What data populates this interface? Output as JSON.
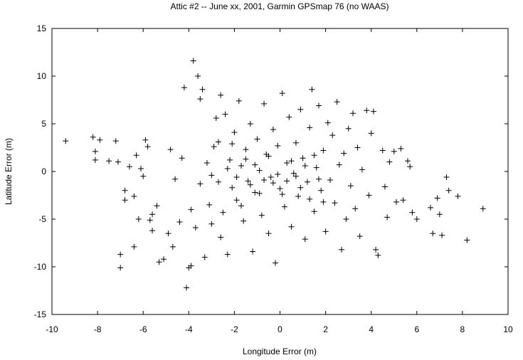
{
  "chart_data": {
    "type": "scatter",
    "title": "Attic #2 -- June xx, 2001, Garmin GPSmap 76 (no WAAS)",
    "xlabel": "Longitude Error  (m)",
    "ylabel": "Latitude Error  (m)",
    "xlim": [
      -10,
      10
    ],
    "ylim": [
      -15,
      15
    ],
    "xticks": [
      -10,
      -8,
      -6,
      -4,
      -2,
      0,
      2,
      4,
      6,
      8,
      10
    ],
    "yticks": [
      -15,
      -10,
      -5,
      0,
      5,
      10,
      15
    ],
    "grid": false,
    "marker": "+",
    "marker_color": "#000000",
    "series": [
      {
        "points": [
          [
            -9.4,
            3.2
          ],
          [
            -8.2,
            3.6
          ],
          [
            -8.1,
            2.1
          ],
          [
            -8.1,
            1.2
          ],
          [
            -7.9,
            3.3
          ],
          [
            -7.5,
            1.1
          ],
          [
            -7.2,
            3.2
          ],
          [
            -7.1,
            1.0
          ],
          [
            -7.0,
            -8.7
          ],
          [
            -7.0,
            -10.1
          ],
          [
            -6.8,
            -2.0
          ],
          [
            -6.8,
            -3.0
          ],
          [
            -6.6,
            0.5
          ],
          [
            -6.4,
            -7.9
          ],
          [
            -6.4,
            -2.6
          ],
          [
            -6.3,
            1.7
          ],
          [
            -6.2,
            -5.0
          ],
          [
            -6.1,
            0.3
          ],
          [
            -6.0,
            -0.5
          ],
          [
            -5.9,
            3.3
          ],
          [
            -5.8,
            2.6
          ],
          [
            -5.7,
            -5.1
          ],
          [
            -5.6,
            -4.5
          ],
          [
            -5.6,
            -6.2
          ],
          [
            -5.4,
            -3.6
          ],
          [
            -5.3,
            -9.5
          ],
          [
            -5.1,
            -9.2
          ],
          [
            -4.9,
            -6.5
          ],
          [
            -4.8,
            2.3
          ],
          [
            -4.7,
            -7.9
          ],
          [
            -4.6,
            -0.8
          ],
          [
            -4.4,
            -5.3
          ],
          [
            -4.3,
            1.4
          ],
          [
            -4.2,
            8.8
          ],
          [
            -4.1,
            -12.2
          ],
          [
            -4.0,
            -10.1
          ],
          [
            -3.9,
            -9.9
          ],
          [
            -3.8,
            11.6
          ],
          [
            -3.6,
            10.0
          ],
          [
            -3.5,
            7.6
          ],
          [
            -3.4,
            8.6
          ],
          [
            -3.3,
            -9.0
          ],
          [
            -3.1,
            -3.5
          ],
          [
            -3.0,
            -0.4
          ],
          [
            -2.8,
            5.6
          ],
          [
            -2.7,
            3.1
          ],
          [
            -2.6,
            8.0
          ],
          [
            -2.6,
            -6.9
          ],
          [
            -2.4,
            6.0
          ],
          [
            -2.3,
            -8.7
          ],
          [
            -2.2,
            1.2
          ],
          [
            -2.1,
            -1.7
          ],
          [
            -2.0,
            4.1
          ],
          [
            -1.9,
            -3.0
          ],
          [
            -1.8,
            7.4
          ],
          [
            -1.7,
            0.6
          ],
          [
            -1.6,
            -5.2
          ],
          [
            -1.5,
            2.3
          ],
          [
            -1.4,
            -1.0
          ],
          [
            -1.3,
            5.0
          ],
          [
            -1.2,
            -8.4
          ],
          [
            -1.1,
            -2.2
          ],
          [
            -1.0,
            3.4
          ],
          [
            -0.9,
            0.1
          ],
          [
            -0.8,
            -4.6
          ],
          [
            -0.7,
            7.1
          ],
          [
            -0.6,
            1.8
          ],
          [
            -0.5,
            -6.5
          ],
          [
            -0.4,
            -0.6
          ],
          [
            -0.3,
            4.4
          ],
          [
            -0.2,
            -9.6
          ],
          [
            -0.1,
            2.7
          ],
          [
            0.0,
            -1.8
          ],
          [
            0.1,
            8.2
          ],
          [
            0.2,
            -3.7
          ],
          [
            0.3,
            0.9
          ],
          [
            0.4,
            5.7
          ],
          [
            0.5,
            -5.8
          ],
          [
            0.6,
            -0.2
          ],
          [
            0.7,
            3.0
          ],
          [
            0.8,
            -2.6
          ],
          [
            0.9,
            6.5
          ],
          [
            1.0,
            1.4
          ],
          [
            1.1,
            -7.1
          ],
          [
            1.2,
            -1.1
          ],
          [
            1.3,
            4.6
          ],
          [
            1.4,
            8.6
          ],
          [
            1.5,
            -4.2
          ],
          [
            1.6,
            0.4
          ],
          [
            1.7,
            6.9
          ],
          [
            1.8,
            -2.0
          ],
          [
            1.9,
            2.2
          ],
          [
            2.0,
            -6.3
          ],
          [
            2.1,
            5.1
          ],
          [
            2.2,
            -0.9
          ],
          [
            2.3,
            3.8
          ],
          [
            2.4,
            -3.3
          ],
          [
            2.5,
            7.3
          ],
          [
            2.6,
            0.7
          ],
          [
            2.7,
            -8.2
          ],
          [
            2.8,
            1.9
          ],
          [
            2.9,
            -5.0
          ],
          [
            3.0,
            4.5
          ],
          [
            3.1,
            -1.5
          ],
          [
            3.2,
            6.1
          ],
          [
            3.3,
            -3.9
          ],
          [
            3.4,
            2.5
          ],
          [
            3.5,
            -6.8
          ],
          [
            3.6,
            0.2
          ],
          [
            3.8,
            6.4
          ],
          [
            3.9,
            -2.5
          ],
          [
            4.0,
            4.0
          ],
          [
            4.1,
            6.3
          ],
          [
            4.2,
            -8.2
          ],
          [
            4.3,
            -8.8
          ],
          [
            4.5,
            2.2
          ],
          [
            4.6,
            -1.6
          ],
          [
            4.7,
            -4.8
          ],
          [
            4.8,
            1.0
          ],
          [
            5.0,
            2.1
          ],
          [
            5.1,
            -3.2
          ],
          [
            5.3,
            2.4
          ],
          [
            5.4,
            -3.0
          ],
          [
            5.6,
            1.1
          ],
          [
            5.7,
            0.5
          ],
          [
            5.8,
            -4.3
          ],
          [
            6.0,
            -5.0
          ],
          [
            6.6,
            -3.8
          ],
          [
            6.7,
            -6.5
          ],
          [
            6.9,
            -2.8
          ],
          [
            7.0,
            -4.5
          ],
          [
            7.1,
            -6.7
          ],
          [
            7.3,
            -0.6
          ],
          [
            7.4,
            -2.0
          ],
          [
            7.8,
            -2.6
          ],
          [
            8.2,
            -7.2
          ],
          [
            8.9,
            -3.9
          ],
          [
            -3.9,
            -4.0
          ],
          [
            -3.7,
            -5.9
          ],
          [
            -3.5,
            -1.3
          ],
          [
            -3.2,
            0.9
          ],
          [
            -3.0,
            -5.5
          ],
          [
            -2.9,
            2.6
          ],
          [
            -2.7,
            -1.1
          ],
          [
            -2.5,
            -4.3
          ],
          [
            -2.3,
            0.3
          ],
          [
            -2.1,
            2.9
          ],
          [
            -1.9,
            -0.6
          ],
          [
            -1.7,
            -3.6
          ],
          [
            -1.5,
            1.3
          ],
          [
            -1.3,
            -1.4
          ],
          [
            -1.1,
            0.7
          ],
          [
            -0.9,
            -2.3
          ],
          [
            -0.7,
            -0.9
          ],
          [
            -0.5,
            1.6
          ],
          [
            -0.3,
            -1.2
          ],
          [
            -0.1,
            -0.3
          ],
          [
            0.1,
            -2.4
          ],
          [
            0.3,
            -1.0
          ],
          [
            0.5,
            1.1
          ],
          [
            0.7,
            -0.5
          ],
          [
            0.9,
            -1.7
          ],
          [
            1.1,
            0.6
          ],
          [
            1.3,
            -2.9
          ],
          [
            1.5,
            1.7
          ],
          [
            1.7,
            -0.8
          ],
          [
            1.9,
            -3.2
          ]
        ]
      }
    ]
  }
}
